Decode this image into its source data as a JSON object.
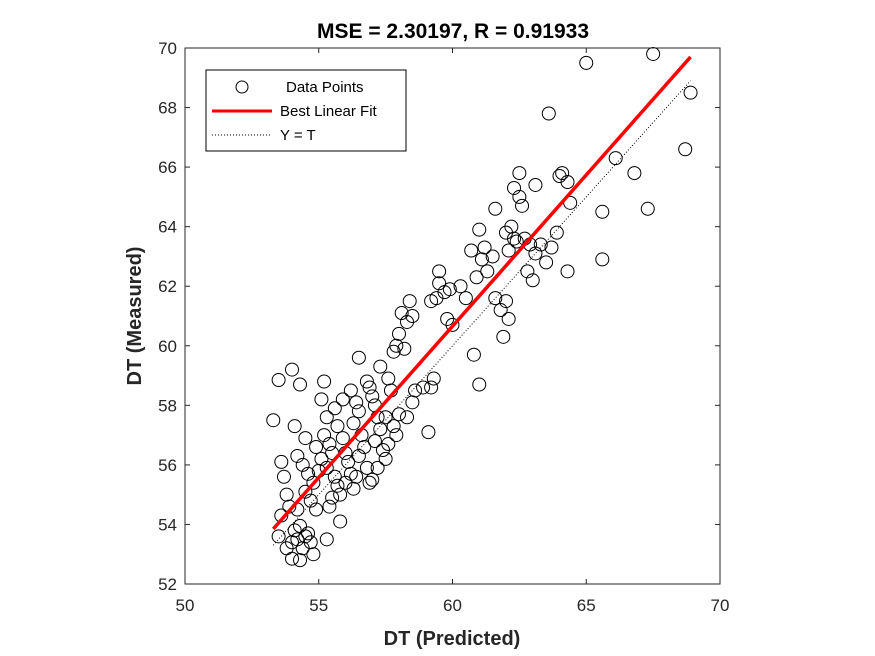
{
  "chart_data": {
    "type": "scatter",
    "title": "MSE = 2.30197, R = 0.91933",
    "xlabel": "DT (Predicted)",
    "ylabel": "DT (Measured)",
    "xlim": [
      50,
      70
    ],
    "ylim": [
      52,
      70
    ],
    "xticks": [
      "50",
      "55",
      "60",
      "65",
      "70"
    ],
    "yticks": [
      "52",
      "54",
      "56",
      "58",
      "60",
      "62",
      "64",
      "66",
      "68",
      "70"
    ],
    "grid": false,
    "legend_position": "top-left",
    "legend": [
      {
        "label": "Data Points",
        "style": "circle-marker",
        "color": "#000000"
      },
      {
        "label": "Best Linear Fit",
        "style": "solid-line",
        "color": "#ff0000"
      },
      {
        "label": "Y = T",
        "style": "dotted-line",
        "color": "#000000"
      }
    ],
    "series": [
      {
        "name": "Data Points",
        "marker": "open-circle",
        "color": "#000000",
        "points": [
          [
            53.3,
            57.5
          ],
          [
            53.5,
            58.85
          ],
          [
            53.6,
            56.1
          ],
          [
            53.7,
            55.6
          ],
          [
            53.8,
            55.0
          ],
          [
            53.9,
            54.6
          ],
          [
            53.6,
            54.3
          ],
          [
            53.5,
            53.6
          ],
          [
            53.8,
            53.2
          ],
          [
            54.0,
            53.4
          ],
          [
            54.0,
            52.85
          ],
          [
            54.1,
            53.8
          ],
          [
            54.2,
            53.5
          ],
          [
            54.3,
            53.95
          ],
          [
            54.4,
            53.2
          ],
          [
            54.5,
            53.6
          ],
          [
            54.6,
            53.7
          ],
          [
            54.7,
            53.4
          ],
          [
            54.8,
            53.0
          ],
          [
            54.3,
            52.8
          ],
          [
            54.0,
            59.2
          ],
          [
            54.3,
            58.7
          ],
          [
            54.1,
            57.3
          ],
          [
            54.5,
            56.9
          ],
          [
            54.2,
            56.3
          ],
          [
            54.4,
            56.0
          ],
          [
            54.6,
            55.7
          ],
          [
            54.8,
            55.4
          ],
          [
            54.5,
            55.1
          ],
          [
            54.7,
            54.8
          ],
          [
            54.9,
            54.5
          ],
          [
            54.2,
            54.5
          ],
          [
            54.9,
            56.6
          ],
          [
            55.0,
            55.8
          ],
          [
            55.1,
            56.2
          ],
          [
            55.1,
            58.2
          ],
          [
            55.2,
            58.8
          ],
          [
            55.3,
            57.6
          ],
          [
            55.2,
            57.0
          ],
          [
            55.4,
            56.7
          ],
          [
            55.5,
            56.4
          ],
          [
            55.3,
            55.9
          ],
          [
            55.6,
            55.6
          ],
          [
            55.7,
            55.3
          ],
          [
            55.8,
            55.0
          ],
          [
            55.5,
            54.9
          ],
          [
            55.4,
            54.6
          ],
          [
            55.3,
            53.5
          ],
          [
            55.8,
            54.1
          ],
          [
            55.6,
            57.9
          ],
          [
            55.7,
            57.3
          ],
          [
            55.9,
            56.9
          ],
          [
            56.0,
            56.4
          ],
          [
            56.1,
            56.1
          ],
          [
            56.2,
            55.7
          ],
          [
            56.0,
            55.4
          ],
          [
            56.3,
            55.2
          ],
          [
            55.9,
            58.2
          ],
          [
            56.2,
            58.5
          ],
          [
            56.4,
            58.1
          ],
          [
            56.5,
            57.8
          ],
          [
            56.3,
            57.4
          ],
          [
            56.6,
            57.0
          ],
          [
            56.7,
            56.6
          ],
          [
            56.5,
            56.3
          ],
          [
            56.8,
            55.9
          ],
          [
            56.4,
            55.6
          ],
          [
            56.9,
            55.4
          ],
          [
            56.5,
            59.6
          ],
          [
            56.8,
            58.8
          ],
          [
            56.9,
            58.6
          ],
          [
            57.0,
            58.3
          ],
          [
            57.1,
            58.0
          ],
          [
            57.2,
            57.6
          ],
          [
            57.3,
            57.2
          ],
          [
            57.1,
            56.8
          ],
          [
            57.4,
            56.5
          ],
          [
            57.5,
            56.2
          ],
          [
            57.2,
            55.9
          ],
          [
            57.0,
            55.5
          ],
          [
            57.3,
            59.3
          ],
          [
            57.6,
            58.9
          ],
          [
            57.7,
            58.5
          ],
          [
            57.5,
            57.6
          ],
          [
            57.8,
            57.3
          ],
          [
            57.9,
            57.0
          ],
          [
            57.6,
            56.7
          ],
          [
            57.8,
            59.8
          ],
          [
            57.9,
            60.0
          ],
          [
            58.0,
            60.4
          ],
          [
            58.1,
            61.1
          ],
          [
            58.3,
            60.8
          ],
          [
            58.4,
            61.5
          ],
          [
            58.5,
            61.0
          ],
          [
            58.2,
            59.9
          ],
          [
            58.0,
            57.7
          ],
          [
            58.3,
            57.6
          ],
          [
            58.5,
            58.1
          ],
          [
            58.6,
            58.5
          ],
          [
            58.9,
            58.6
          ],
          [
            59.2,
            58.6
          ],
          [
            59.3,
            58.9
          ],
          [
            59.1,
            57.1
          ],
          [
            59.2,
            61.5
          ],
          [
            59.4,
            61.6
          ],
          [
            59.5,
            62.1
          ],
          [
            59.5,
            62.5
          ],
          [
            59.7,
            61.8
          ],
          [
            59.9,
            61.9
          ],
          [
            59.8,
            60.9
          ],
          [
            60.0,
            60.7
          ],
          [
            60.3,
            62.0
          ],
          [
            60.5,
            61.6
          ],
          [
            60.7,
            63.2
          ],
          [
            60.9,
            62.3
          ],
          [
            61.0,
            63.9
          ],
          [
            61.2,
            63.3
          ],
          [
            61.1,
            62.9
          ],
          [
            61.3,
            62.5
          ],
          [
            61.5,
            63.0
          ],
          [
            60.8,
            59.7
          ],
          [
            61.0,
            58.7
          ],
          [
            61.6,
            61.6
          ],
          [
            61.8,
            61.2
          ],
          [
            62.0,
            61.5
          ],
          [
            61.9,
            60.3
          ],
          [
            62.1,
            60.9
          ],
          [
            61.6,
            64.6
          ],
          [
            62.0,
            63.8
          ],
          [
            62.2,
            64.0
          ],
          [
            62.3,
            63.6
          ],
          [
            62.1,
            63.2
          ],
          [
            62.3,
            65.3
          ],
          [
            62.5,
            65.0
          ],
          [
            62.6,
            64.7
          ],
          [
            62.5,
            65.8
          ],
          [
            62.4,
            63.5
          ],
          [
            62.7,
            63.6
          ],
          [
            62.9,
            63.4
          ],
          [
            63.1,
            63.1
          ],
          [
            62.8,
            62.5
          ],
          [
            63.0,
            62.2
          ],
          [
            63.3,
            63.4
          ],
          [
            63.1,
            65.4
          ],
          [
            63.5,
            62.8
          ],
          [
            63.7,
            63.3
          ],
          [
            63.6,
            67.8
          ],
          [
            63.9,
            63.8
          ],
          [
            64.0,
            65.7
          ],
          [
            64.1,
            65.8
          ],
          [
            64.3,
            65.5
          ],
          [
            64.4,
            64.8
          ],
          [
            64.3,
            62.5
          ],
          [
            65.0,
            69.5
          ],
          [
            65.6,
            64.5
          ],
          [
            65.6,
            62.9
          ],
          [
            66.1,
            66.3
          ],
          [
            66.8,
            65.8
          ],
          [
            67.3,
            64.6
          ],
          [
            67.5,
            69.8
          ],
          [
            68.7,
            66.6
          ],
          [
            68.9,
            68.5
          ]
        ]
      },
      {
        "name": "Best Linear Fit",
        "type": "line",
        "color": "#ff0000",
        "x": [
          53.3,
          68.9
        ],
        "y": [
          53.85,
          69.7
        ]
      },
      {
        "name": "Y = T",
        "type": "line",
        "style": "dotted",
        "color": "#000000",
        "x": [
          53.3,
          68.9
        ],
        "y": [
          53.3,
          68.9
        ]
      }
    ]
  }
}
